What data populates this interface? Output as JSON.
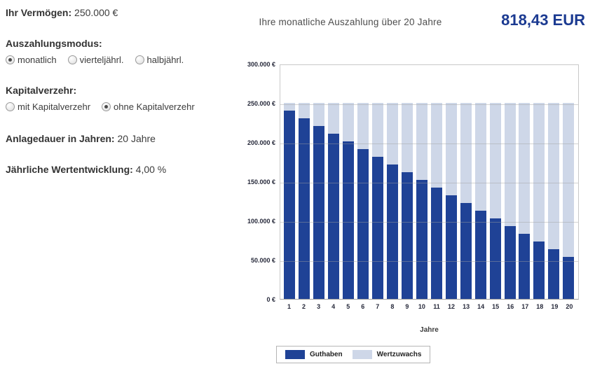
{
  "form": {
    "vermoegen": {
      "label": "Ihr Vermögen:",
      "value": "250.000 €"
    },
    "payout_mode": {
      "label": "Auszahlungsmodus:",
      "options": [
        {
          "label": "monatlich",
          "selected": true
        },
        {
          "label": "vierteljährl.",
          "selected": false
        },
        {
          "label": "halbjährl.",
          "selected": false
        }
      ]
    },
    "kapitalverzehr": {
      "label": "Kapitalverzehr:",
      "options": [
        {
          "label": "mit Kapitalverzehr",
          "selected": false
        },
        {
          "label": "ohne Kapitalverzehr",
          "selected": true
        }
      ]
    },
    "anlagedauer": {
      "label": "Anlagedauer in Jahren:",
      "value": "20 Jahre"
    },
    "wertentwicklung": {
      "label": "Jährliche Wertentwicklung:",
      "value": "4,00 %"
    }
  },
  "result": {
    "title": "Ihre monatliche Auszahlung über 20 Jahre",
    "value": "818,43 EUR"
  },
  "chart_data": {
    "type": "bar",
    "stacked": true,
    "xlabel": "Jahre",
    "ylabel": "",
    "ylim": [
      0,
      300000
    ],
    "ytick_labels": [
      "300.000 €",
      "250.000 €",
      "200.000 €",
      "150.000 €",
      "100.000 €",
      "50.000 €",
      "0 €"
    ],
    "categories": [
      "1",
      "2",
      "3",
      "4",
      "5",
      "6",
      "7",
      "8",
      "9",
      "10",
      "11",
      "12",
      "13",
      "14",
      "15",
      "16",
      "17",
      "18",
      "19",
      "20"
    ],
    "series": [
      {
        "name": "Guthaben",
        "color": "#1f4296",
        "values": [
          240179,
          230358,
          220536,
          210715,
          200894,
          191073,
          181251,
          171430,
          161609,
          151788,
          141966,
          132145,
          122324,
          112503,
          102681,
          92860,
          83039,
          73218,
          63396,
          53575
        ]
      },
      {
        "name": "Wertzuwachs",
        "color": "#ced7e8",
        "values": [
          9821,
          19642,
          29464,
          39285,
          49106,
          58927,
          68749,
          78570,
          88391,
          98212,
          108034,
          117855,
          127676,
          137497,
          147319,
          157140,
          166961,
          176782,
          186604,
          196425
        ]
      }
    ],
    "total_per_year": 250000,
    "grid": true,
    "legend_position": "bottom",
    "colors": {
      "accent_navy": "#1b3a91",
      "bar_dark": "#1f4296",
      "bar_light": "#ced7e8"
    }
  }
}
